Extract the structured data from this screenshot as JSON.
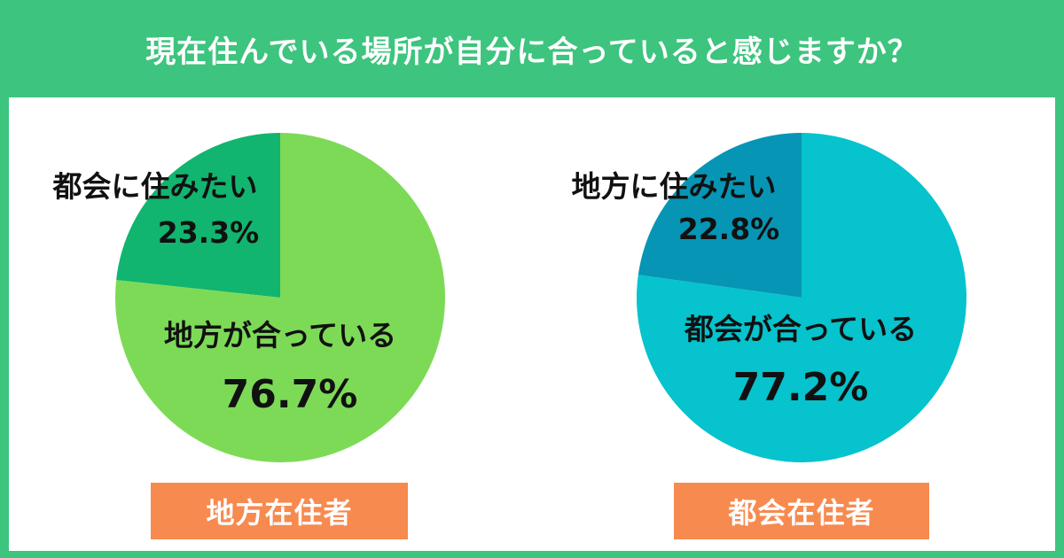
{
  "title": "現在住んでいる場所が自分に合っていると感じますか？",
  "chart_data": [
    {
      "type": "pie",
      "caption": "地方在住者",
      "slices": [
        {
          "label": "都会に住みたい",
          "value": 23.3,
          "display": "23.3%",
          "color": "#11b56f"
        },
        {
          "label": "地方が合っている",
          "value": 76.7,
          "display": "76.7%",
          "color": "#7dda57"
        }
      ]
    },
    {
      "type": "pie",
      "caption": "都会在住者",
      "slices": [
        {
          "label": "地方に住みたい",
          "value": 22.8,
          "display": "22.8%",
          "color": "#0795b5"
        },
        {
          "label": "都会が合っている",
          "value": 77.2,
          "display": "77.2%",
          "color": "#06c3cd"
        }
      ]
    }
  ]
}
